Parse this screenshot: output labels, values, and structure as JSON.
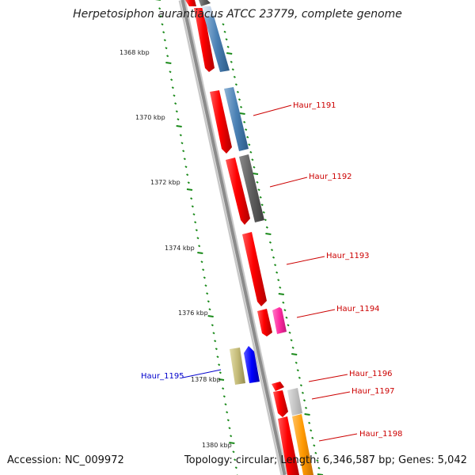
{
  "title": "Herpetosiphon aurantiacus ATCC 23779, complete genome",
  "accession": "Accession: NC_009972",
  "summary": "Topology: circular; Length: 6,346,587 bp; Genes: 5,042",
  "colors": {
    "backbone": "#8c8c8c",
    "ruler_ticks": "#1a8a1a",
    "label_default": "#cc0000",
    "label_highlight": "#0000cc"
  },
  "ruler": {
    "unit": "kbp",
    "major_labels": [
      "1368 kbp",
      "1370 kbp",
      "1372 kbp",
      "1374 kbp",
      "1376 kbp",
      "1378 kbp",
      "1380 kbp"
    ]
  },
  "gene_labels": [
    {
      "name": "Haur_1191",
      "color": "red"
    },
    {
      "name": "Haur_1192",
      "color": "red"
    },
    {
      "name": "Haur_1193",
      "color": "red"
    },
    {
      "name": "Haur_1194",
      "color": "red"
    },
    {
      "name": "Haur_1195",
      "color": "blue"
    },
    {
      "name": "Haur_1196",
      "color": "red"
    },
    {
      "name": "Haur_1197",
      "color": "red"
    },
    {
      "name": "Haur_1198",
      "color": "red"
    }
  ]
}
